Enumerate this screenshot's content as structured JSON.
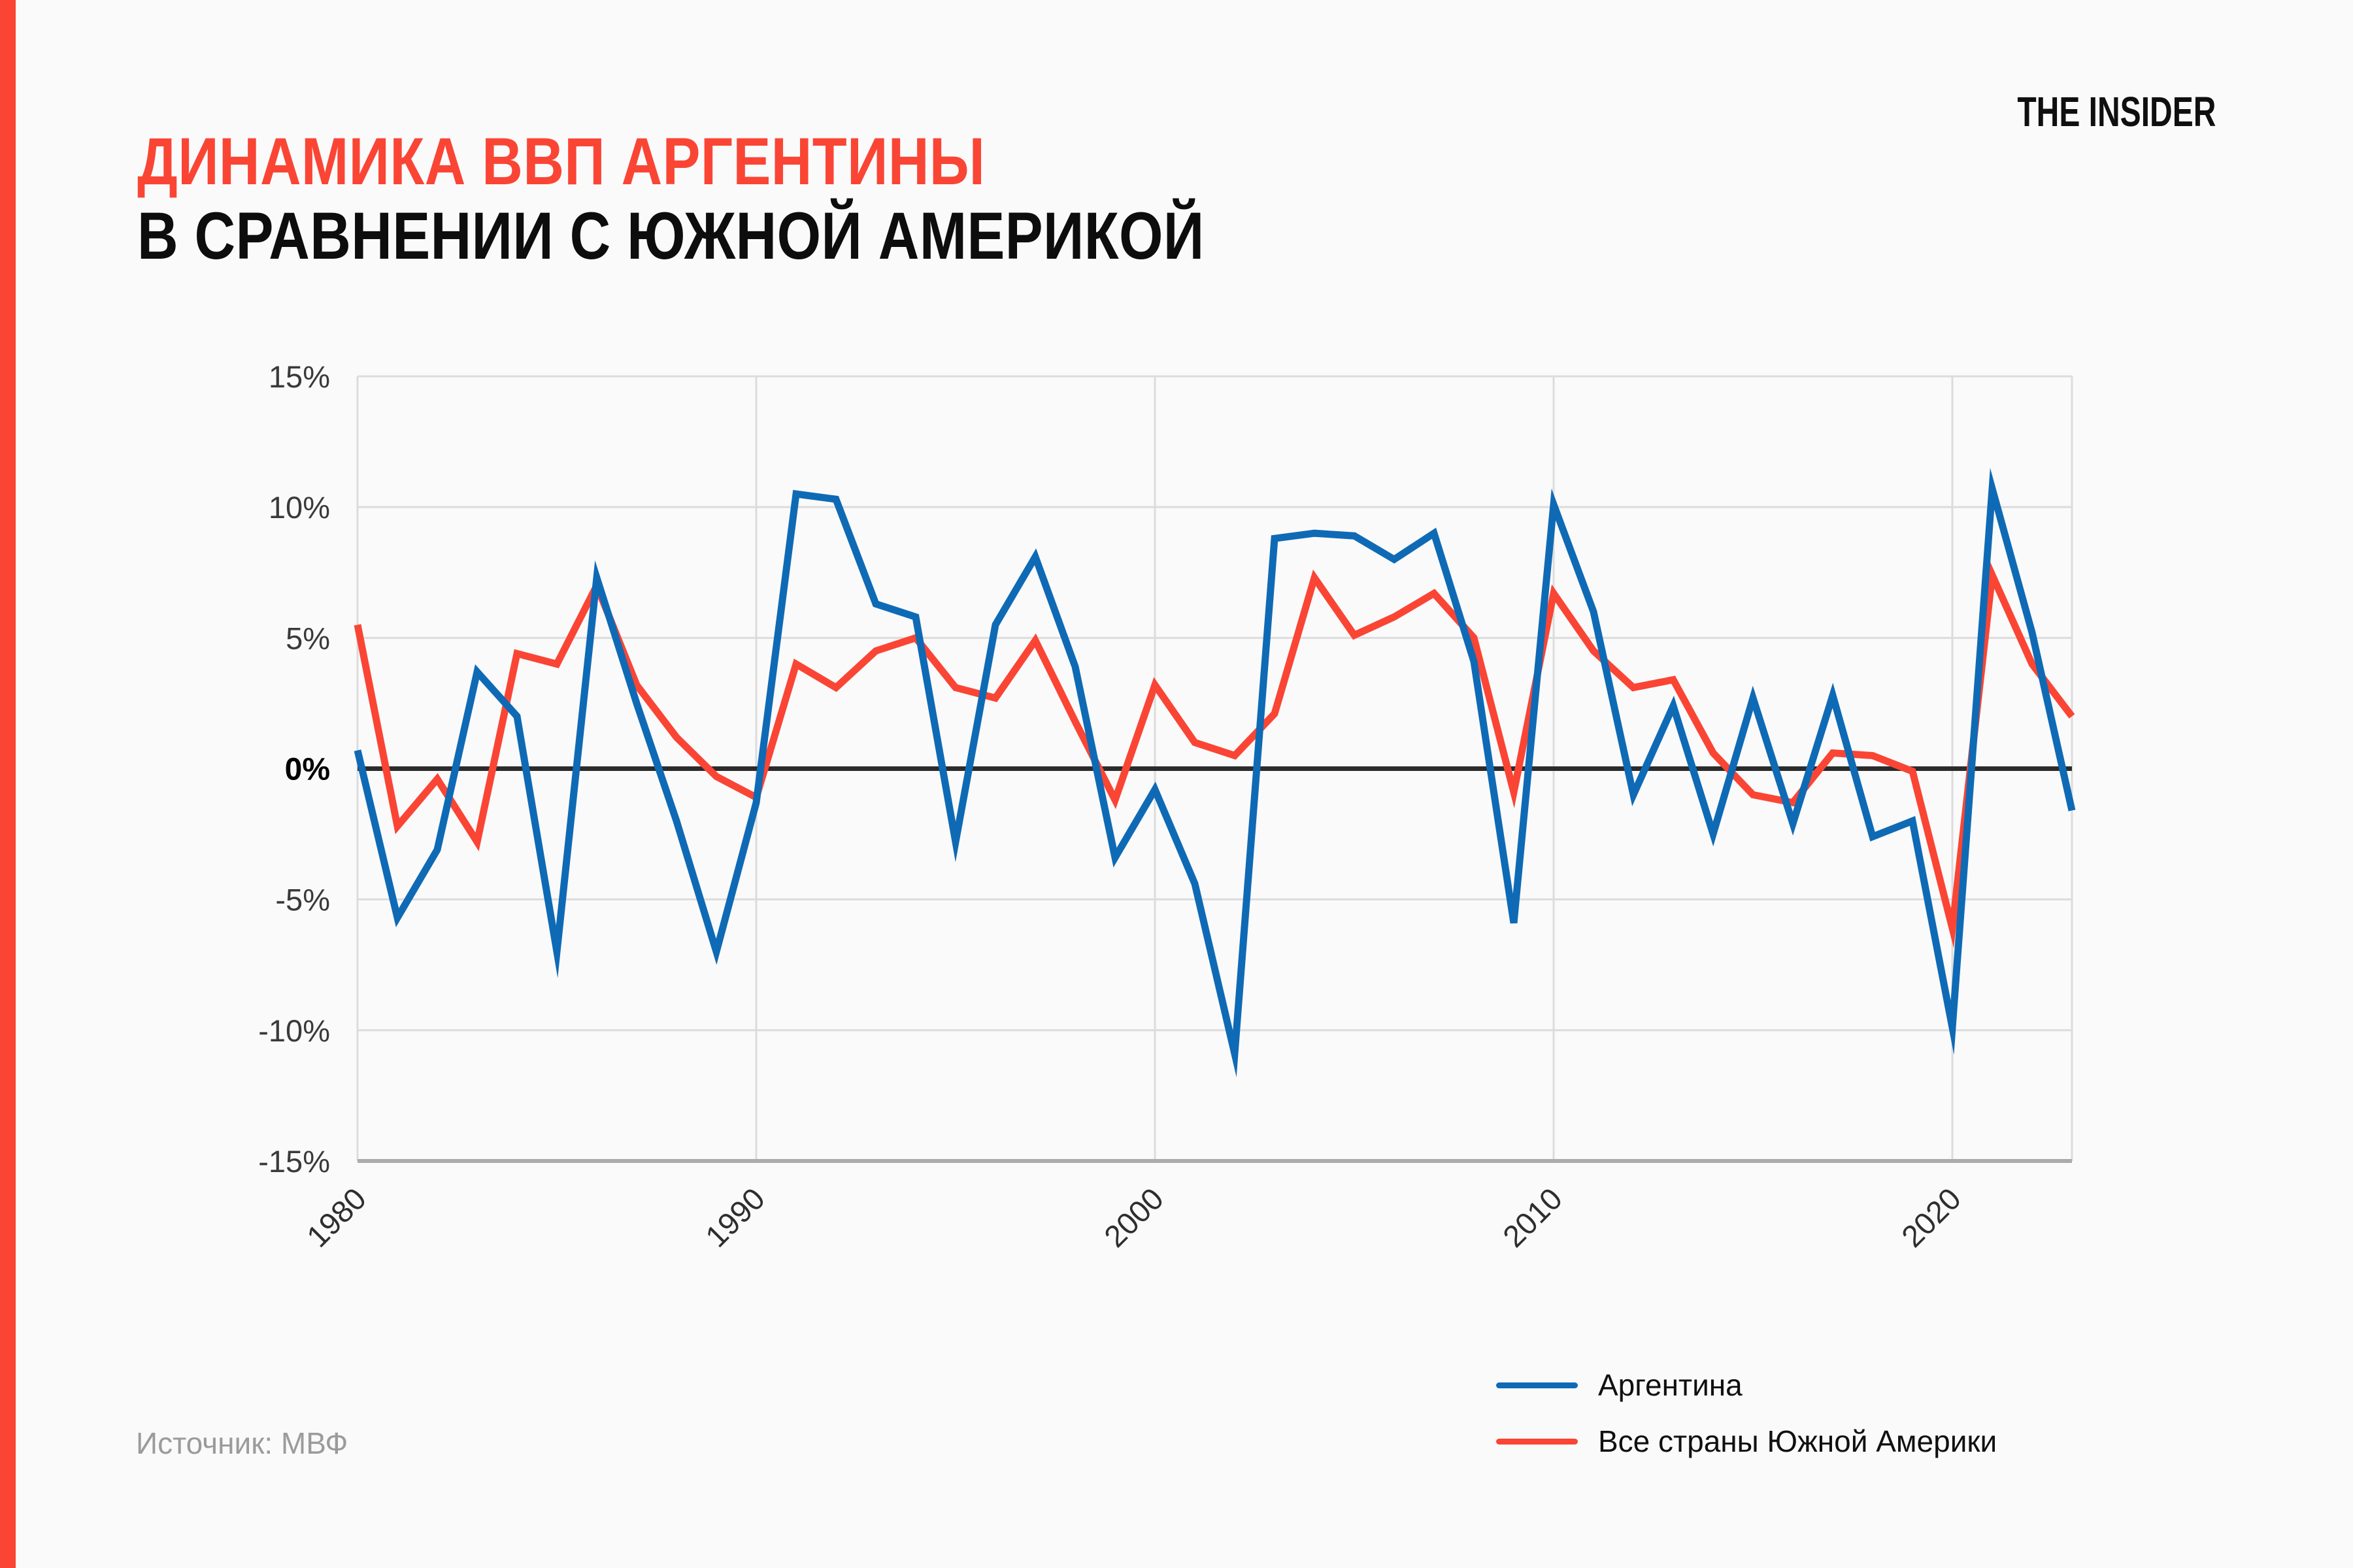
{
  "page": {
    "background": "#fafafa",
    "accent_color": "#fa4535"
  },
  "header": {
    "title_line1": "ДИНАМИКА ВВП АРГЕНТИНЫ",
    "title_line2": "В СРАВНЕНИИ С ЮЖНОЙ АМЕРИКОЙ",
    "title_line1_color": "#fa4535",
    "title_line2_color": "#0d0d0d",
    "logo": "THE INSIDER"
  },
  "source": {
    "label": "Источник: МВФ"
  },
  "legend": {
    "items": [
      {
        "label": "Аргентина",
        "color": "#0f6ab5"
      },
      {
        "label": "Все страны Южной Америки",
        "color": "#fa4535"
      }
    ]
  },
  "chart_data": {
    "type": "line",
    "title": "Динамика ВВП Аргентины в сравнении с Южной Америкой, % в год",
    "xlabel": "",
    "ylabel": "",
    "ylim": [
      -15,
      15
    ],
    "xlim": [
      1980,
      2023
    ],
    "grid": true,
    "legend_position": "bottom-right",
    "zero_line": true,
    "y_ticks": [
      {
        "value": 15,
        "label": "15%"
      },
      {
        "value": 10,
        "label": "10%"
      },
      {
        "value": 5,
        "label": "5%"
      },
      {
        "value": 0,
        "label": "0%"
      },
      {
        "value": -5,
        "label": "-5%"
      },
      {
        "value": -10,
        "label": "-10%"
      },
      {
        "value": -15,
        "label": "-15%"
      }
    ],
    "x_ticks": [
      {
        "value": 1980,
        "label": "1980"
      },
      {
        "value": 1990,
        "label": "1990"
      },
      {
        "value": 2000,
        "label": "2000"
      },
      {
        "value": 2010,
        "label": "2010"
      },
      {
        "value": 2020,
        "label": "2020"
      }
    ],
    "x": [
      1980,
      1981,
      1982,
      1983,
      1984,
      1985,
      1986,
      1987,
      1988,
      1989,
      1990,
      1991,
      1992,
      1993,
      1994,
      1995,
      1996,
      1997,
      1998,
      1999,
      2000,
      2001,
      2002,
      2003,
      2004,
      2005,
      2006,
      2007,
      2008,
      2009,
      2010,
      2011,
      2012,
      2013,
      2014,
      2015,
      2016,
      2017,
      2018,
      2019,
      2020,
      2021,
      2022,
      2023
    ],
    "series": [
      {
        "name": "Аргентина",
        "color": "#0f6ab5",
        "values": [
          0.7,
          -5.7,
          -3.1,
          3.7,
          2.0,
          -7.0,
          7.3,
          2.5,
          -2.0,
          -7.0,
          -1.3,
          10.5,
          10.3,
          6.3,
          5.8,
          -2.8,
          5.5,
          8.1,
          3.9,
          -3.4,
          -0.8,
          -4.4,
          -10.9,
          8.8,
          9.0,
          8.9,
          8.0,
          9.0,
          4.1,
          -5.9,
          10.1,
          6.0,
          -1.0,
          2.4,
          -2.5,
          2.7,
          -2.1,
          2.8,
          -2.6,
          -2.0,
          -9.9,
          10.7,
          5.2,
          -1.6
        ]
      },
      {
        "name": "Все страны Южной Америки",
        "color": "#fa4535",
        "values": [
          5.5,
          -2.2,
          -0.4,
          -2.8,
          4.4,
          4.0,
          7.0,
          3.2,
          1.2,
          -0.3,
          -1.1,
          4.0,
          3.1,
          4.5,
          5.0,
          3.1,
          2.7,
          4.9,
          1.8,
          -1.2,
          3.2,
          1.0,
          0.5,
          2.1,
          7.3,
          5.1,
          5.8,
          6.7,
          5.0,
          -0.9,
          6.7,
          4.5,
          3.1,
          3.4,
          0.6,
          -1.0,
          -1.3,
          0.6,
          0.5,
          -0.1,
          -6.1,
          7.4,
          4.0,
          2.0
        ]
      }
    ],
    "styles": {
      "grid_color": "#dcdcdc",
      "axis_color": "#ababab",
      "zero_line_color": "#2b2b2b",
      "line_width": 11
    }
  }
}
